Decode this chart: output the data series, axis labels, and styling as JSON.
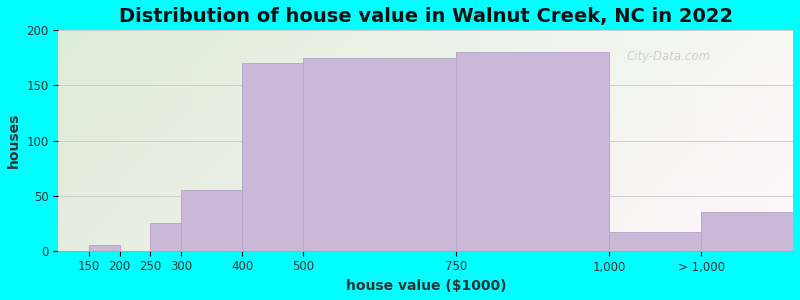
{
  "title": "Distribution of house value in Walnut Creek, NC in 2022",
  "xlabel": "house value ($1000)",
  "ylabel": "houses",
  "bar_lefts": [
    100,
    150,
    200,
    250,
    300,
    400,
    500,
    750,
    1000,
    1150
  ],
  "bar_rights": [
    150,
    200,
    250,
    300,
    400,
    500,
    750,
    1000,
    1150,
    1300
  ],
  "bar_values": [
    0,
    5,
    0,
    25,
    55,
    170,
    175,
    180,
    17,
    35
  ],
  "tick_positions": [
    150,
    200,
    250,
    300,
    400,
    500,
    750,
    1000,
    1150
  ],
  "tick_labels": [
    "150",
    "200",
    "250",
    "300",
    "400",
    "500",
    "750",
    "1,000",
    "> 1,000"
  ],
  "bar_color": "#c9b8d8",
  "bar_edge_color": "#b8a8c8",
  "ylim": [
    0,
    200
  ],
  "yticks": [
    0,
    50,
    100,
    150,
    200
  ],
  "xlim": [
    100,
    1300
  ],
  "background_color": "#00ffff",
  "title_fontsize": 14,
  "axis_label_fontsize": 10,
  "tick_fontsize": 8.5,
  "watermark_text": "City-Data.com"
}
